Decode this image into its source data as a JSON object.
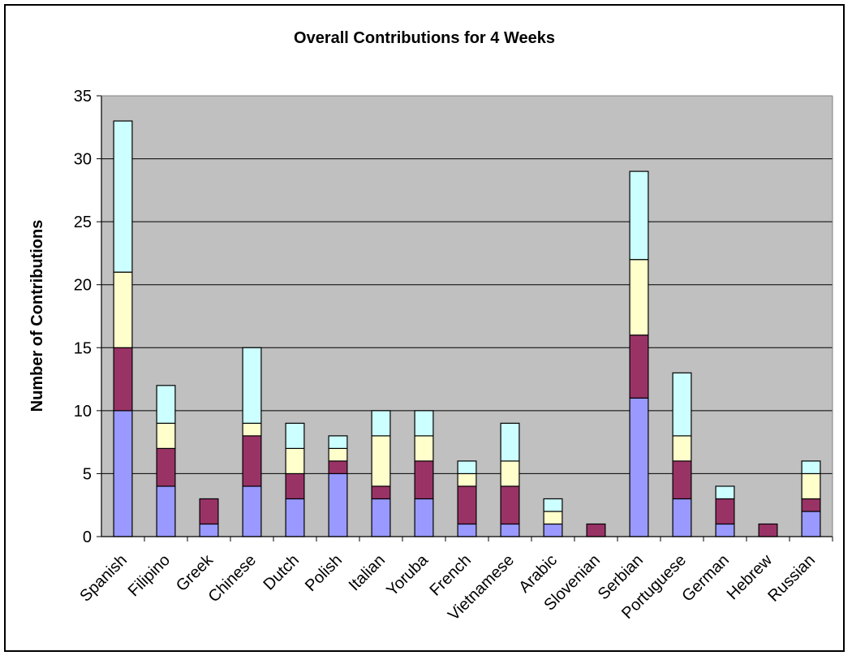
{
  "chart_data": {
    "type": "bar",
    "stacked": true,
    "title": "Overall Contributions for 4 Weeks",
    "xlabel": "",
    "ylabel": "Number of Contributions",
    "ylim": [
      0,
      35
    ],
    "yticks": [
      0,
      5,
      10,
      15,
      20,
      25,
      30,
      35
    ],
    "grid": true,
    "legend": "none",
    "plot_background": "#c0c0c0",
    "categories": [
      "Spanish",
      "Filipino",
      "Greek",
      "Chinese",
      "Dutch",
      "Polish",
      "Italian",
      "Yoruba",
      "French",
      "Vietnamese",
      "Arabic",
      "Slovenian",
      "Serbian",
      "Portuguese",
      "German",
      "Hebrew",
      "Russian"
    ],
    "series": [
      {
        "color": "#9999ff",
        "values": [
          10,
          4,
          1,
          4,
          3,
          5,
          3,
          3,
          1,
          1,
          1,
          0,
          11,
          3,
          1,
          0,
          2
        ]
      },
      {
        "color": "#993366",
        "values": [
          5,
          3,
          2,
          4,
          2,
          1,
          1,
          3,
          3,
          3,
          0,
          1,
          5,
          3,
          2,
          1,
          1
        ]
      },
      {
        "color": "#ffffcc",
        "values": [
          6,
          2,
          0,
          1,
          2,
          1,
          4,
          2,
          1,
          2,
          1,
          0,
          6,
          2,
          0,
          0,
          2
        ]
      },
      {
        "color": "#ccffff",
        "values": [
          12,
          3,
          0,
          6,
          2,
          1,
          2,
          2,
          1,
          3,
          1,
          0,
          7,
          5,
          1,
          0,
          1
        ]
      }
    ]
  }
}
